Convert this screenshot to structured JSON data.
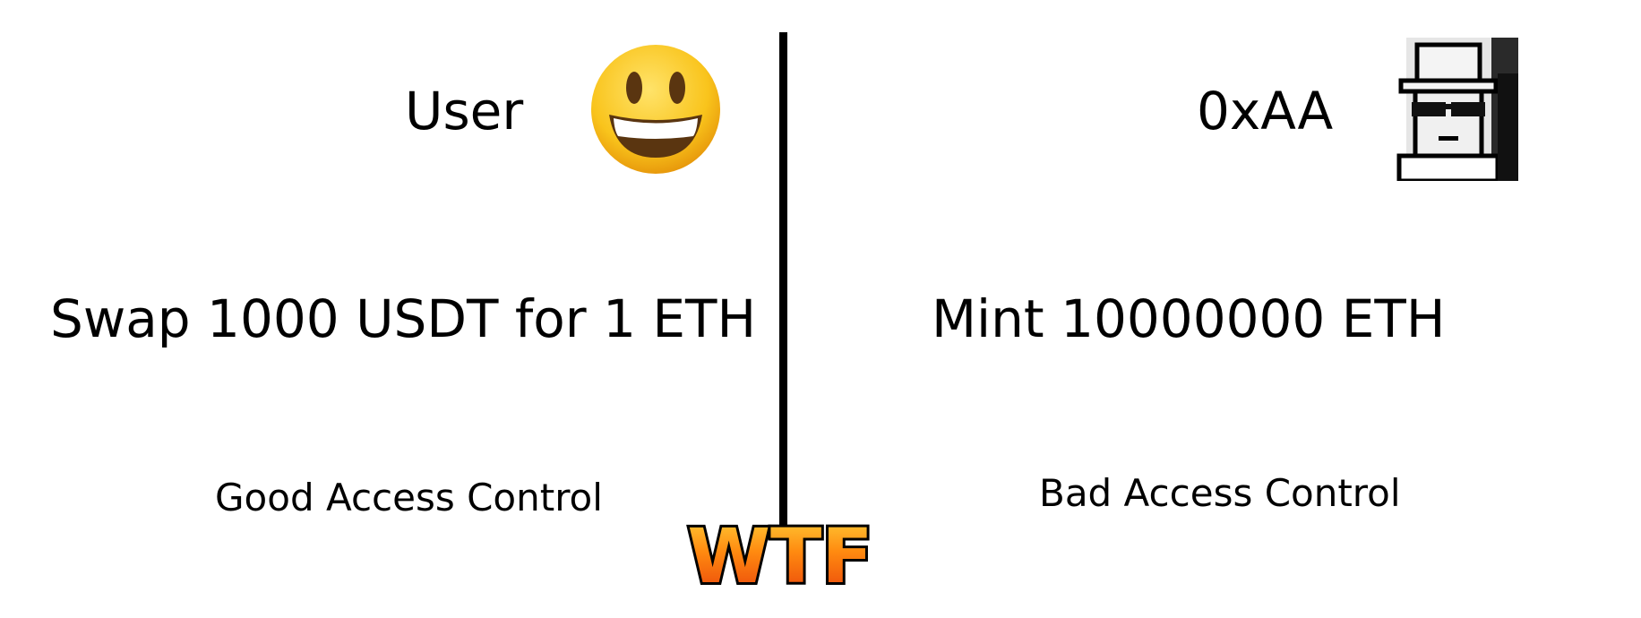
{
  "left": {
    "name": "User",
    "avatar_icon": "grinning-face-emoji",
    "action": "Swap 1000 USDT for 1 ETH",
    "label": "Good Access Control"
  },
  "right": {
    "name": "0xAA",
    "avatar_icon": "pixel-avatar-with-hat-and-sunglasses",
    "action": "Mint 10000000 ETH",
    "label": "Bad Access Control"
  },
  "footer": {
    "logo_text": "WTF",
    "logo_colors": [
      "#ffd23a",
      "#ff8a10",
      "#e8400a"
    ]
  }
}
